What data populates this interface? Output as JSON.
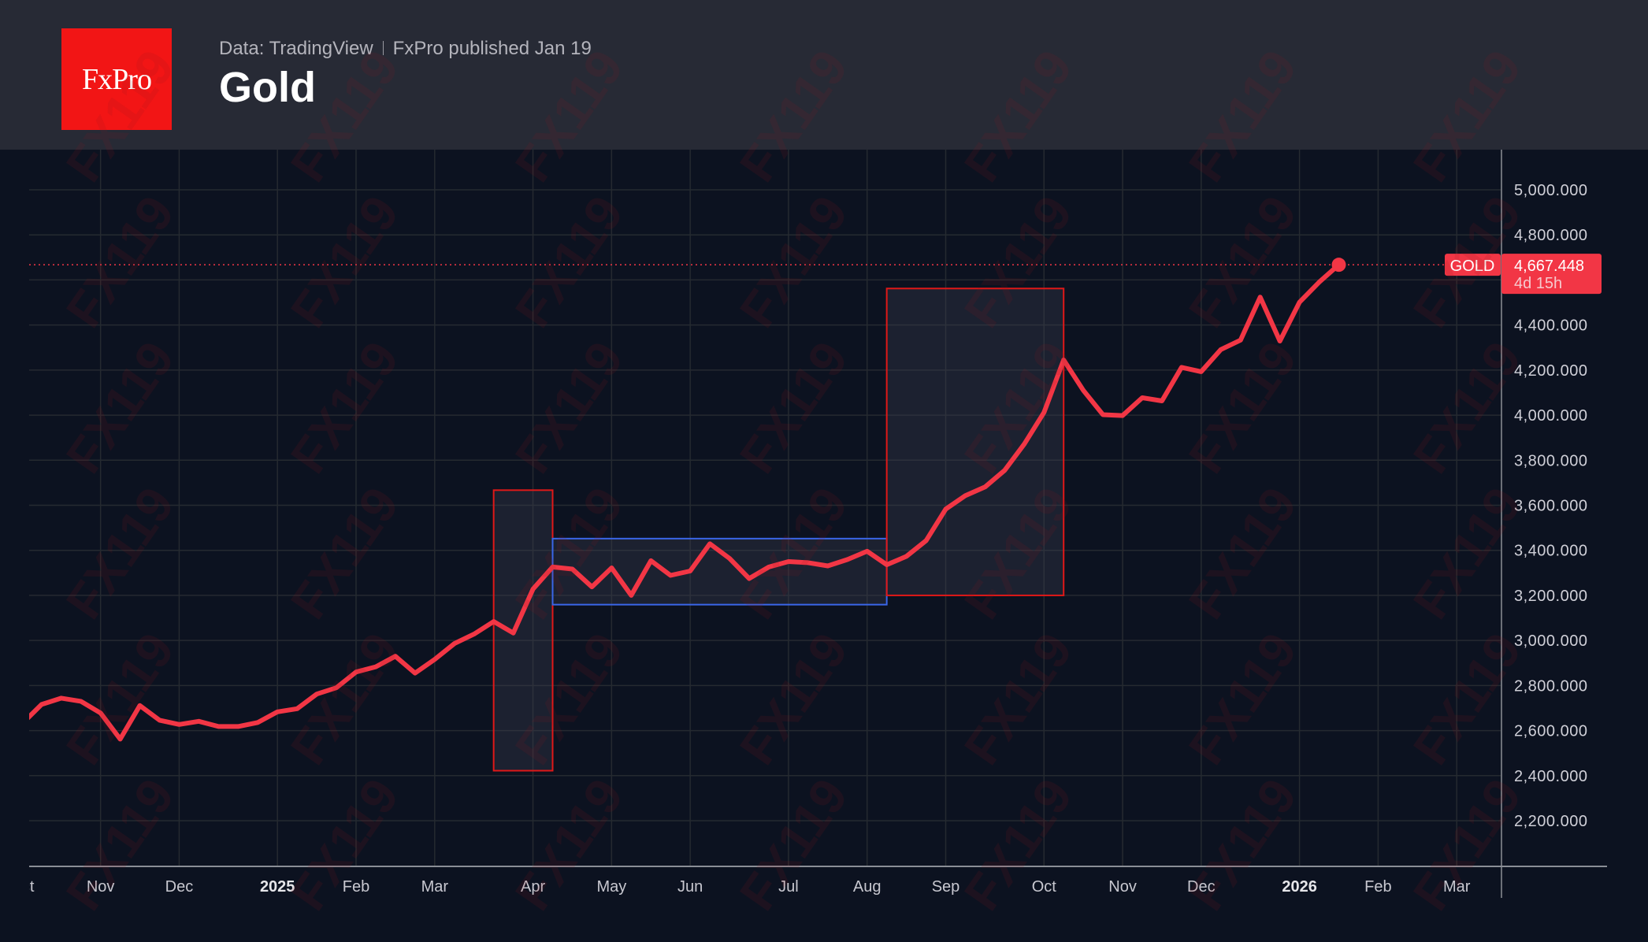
{
  "header": {
    "logo_text": "FxPro",
    "source": "Data: TradingView",
    "published": "FxPro published Jan 19",
    "title": "Gold"
  },
  "watermark": "FX119",
  "colors": {
    "line": "#f23645",
    "header_bg": "#272a35",
    "chart_bg": "#0c1220",
    "logo": "#f21515",
    "box_red": "#e01818",
    "box_blue": "#3a66e8"
  },
  "chart_data": {
    "type": "line",
    "title": "Gold",
    "interval": "weekly",
    "x": [
      "2024-10-07",
      "2024-10-14",
      "2024-10-21",
      "2024-10-28",
      "2024-11-04",
      "2024-11-11",
      "2024-11-18",
      "2024-11-25",
      "2024-12-02",
      "2024-12-09",
      "2024-12-16",
      "2024-12-23",
      "2024-12-30",
      "2025-01-06",
      "2025-01-13",
      "2025-01-20",
      "2025-01-27",
      "2025-02-03",
      "2025-02-10",
      "2025-02-17",
      "2025-02-24",
      "2025-03-03",
      "2025-03-10",
      "2025-03-17",
      "2025-03-24",
      "2025-03-31",
      "2025-04-07",
      "2025-04-14",
      "2025-04-21",
      "2025-04-28",
      "2025-05-05",
      "2025-05-12",
      "2025-05-19",
      "2025-05-26",
      "2025-06-02",
      "2025-06-09",
      "2025-06-16",
      "2025-06-23",
      "2025-06-30",
      "2025-07-07",
      "2025-07-14",
      "2025-07-21",
      "2025-07-28",
      "2025-08-04",
      "2025-08-11",
      "2025-08-18",
      "2025-08-25",
      "2025-09-01",
      "2025-09-08",
      "2025-09-15",
      "2025-09-22",
      "2025-09-29",
      "2025-10-06",
      "2025-10-13",
      "2025-10-20",
      "2025-10-27",
      "2025-11-03",
      "2025-11-10",
      "2025-11-17",
      "2025-11-24",
      "2025-12-01",
      "2025-12-08",
      "2025-12-15",
      "2025-12-22",
      "2025-12-29",
      "2026-01-05",
      "2026-01-12",
      "2026-01-19"
    ],
    "series": [
      {
        "values": [
          2630,
          2716,
          2744,
          2730,
          2678,
          2562,
          2711,
          2646,
          2627,
          2641,
          2618,
          2618,
          2636,
          2683,
          2697,
          2762,
          2790,
          2860,
          2883,
          2930,
          2855,
          2916,
          2986,
          3028,
          3084,
          3033,
          3228,
          3326,
          3317,
          3238,
          3322,
          3200,
          3354,
          3289,
          3308,
          3429,
          3364,
          3275,
          3326,
          3350,
          3345,
          3331,
          3359,
          3396,
          3336,
          3373,
          3443,
          3583,
          3643,
          3681,
          3755,
          3872,
          4012,
          4245,
          4110,
          4002,
          3998,
          4077,
          4063,
          4212,
          4193,
          4291,
          4333,
          4524,
          4329,
          4501,
          4590,
          4667.448
        ]
      }
    ],
    "ylim": [
      2000,
      5200
    ],
    "y_ticks": [
      2200,
      2400,
      2600,
      2800,
      3000,
      3200,
      3400,
      3600,
      3800,
      4000,
      4200,
      4400,
      4800,
      5000
    ],
    "y_tick_labels": [
      "2,200.000",
      "2,400.000",
      "2,600.000",
      "2,800.000",
      "3,000.000",
      "3,200.000",
      "3,400.000",
      "3,600.000",
      "3,800.000",
      "4,000.000",
      "4,200.000",
      "4,400.000",
      "4,800.000",
      "5,000.000"
    ],
    "x_ticks": [
      {
        "date": "2024-10-07",
        "label": "Oct",
        "bold": false
      },
      {
        "date": "2024-11-04",
        "label": "Nov",
        "bold": false
      },
      {
        "date": "2024-12-02",
        "label": "Dec",
        "bold": false
      },
      {
        "date": "2025-01-06",
        "label": "2025",
        "bold": true
      },
      {
        "date": "2025-02-03",
        "label": "Feb",
        "bold": false
      },
      {
        "date": "2025-03-03",
        "label": "Mar",
        "bold": false
      },
      {
        "date": "2025-04-07",
        "label": "Apr",
        "bold": false
      },
      {
        "date": "2025-05-05",
        "label": "May",
        "bold": false
      },
      {
        "date": "2025-06-02",
        "label": "Jun",
        "bold": false
      },
      {
        "date": "2025-07-07",
        "label": "Jul",
        "bold": false
      },
      {
        "date": "2025-08-04",
        "label": "Aug",
        "bold": false
      },
      {
        "date": "2025-09-01",
        "label": "Sep",
        "bold": false
      },
      {
        "date": "2025-10-06",
        "label": "Oct",
        "bold": false
      },
      {
        "date": "2025-11-03",
        "label": "Nov",
        "bold": false
      },
      {
        "date": "2025-12-01",
        "label": "Dec",
        "bold": false
      },
      {
        "date": "2026-01-05",
        "label": "2026",
        "bold": true
      },
      {
        "date": "2026-02-02",
        "label": "Feb",
        "bold": false
      },
      {
        "date": "2026-03-02",
        "label": "Mar",
        "bold": false
      }
    ],
    "grid": true,
    "boxes": [
      {
        "from": "2025-03-24",
        "to": "2025-04-14",
        "low": 2422,
        "high": 3667,
        "color": "red"
      },
      {
        "from": "2025-04-14",
        "to": "2025-08-11",
        "low": 3159,
        "high": 3452,
        "color": "blue"
      },
      {
        "from": "2025-08-11",
        "to": "2025-10-13",
        "low": 3200,
        "high": 4562,
        "color": "red"
      }
    ],
    "last_price": {
      "symbol": "GOLD",
      "value": "4,667.448",
      "countdown": "4d 15h"
    }
  }
}
